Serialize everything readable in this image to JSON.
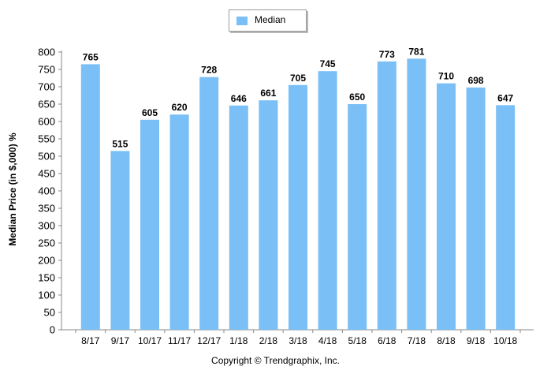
{
  "chart_data": {
    "type": "bar",
    "categories": [
      "8/17",
      "9/17",
      "10/17",
      "11/17",
      "12/17",
      "1/18",
      "2/18",
      "3/18",
      "4/18",
      "5/18",
      "6/18",
      "7/18",
      "8/18",
      "9/18",
      "10/18"
    ],
    "series": [
      {
        "name": "Median",
        "values": [
          765,
          515,
          605,
          620,
          728,
          646,
          661,
          705,
          745,
          650,
          773,
          781,
          710,
          698,
          647
        ],
        "color": "#7ABFF5"
      }
    ],
    "ylabel": "Median Price (in $,000) %",
    "xlabel": "",
    "ylim": [
      0,
      800
    ],
    "yticks": [
      0,
      50,
      100,
      150,
      200,
      250,
      300,
      350,
      400,
      450,
      500,
      550,
      600,
      650,
      700,
      750,
      800
    ],
    "grid": false,
    "legend_position": "top-center"
  },
  "footer": {
    "copyright": "Copyright © Trendgraphix, Inc."
  }
}
